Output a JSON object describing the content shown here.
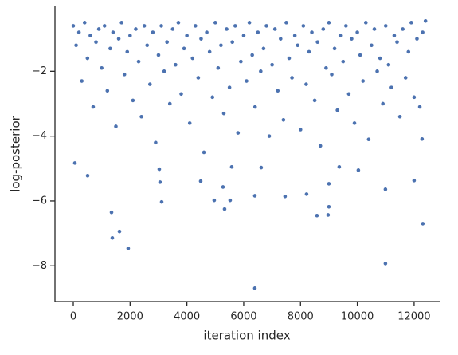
{
  "chart_data": {
    "type": "scatter",
    "xlabel": "iteration index",
    "ylabel": "log-posterior",
    "color": "#4c72b0",
    "x": [
      0,
      100,
      200,
      300,
      400,
      500,
      600,
      700,
      800,
      900,
      1000,
      1100,
      1200,
      1300,
      1400,
      1500,
      1600,
      1700,
      1800,
      1900,
      2000,
      2100,
      2200,
      2300,
      2400,
      2500,
      2600,
      2700,
      2800,
      2900,
      3000,
      3100,
      3200,
      3300,
      3400,
      3500,
      3600,
      3700,
      3800,
      3900,
      4000,
      4100,
      4200,
      4300,
      4400,
      4500,
      4600,
      4700,
      4800,
      4900,
      5000,
      5100,
      5200,
      5300,
      5400,
      5500,
      5600,
      5700,
      5800,
      5900,
      6000,
      6100,
      6200,
      6300,
      6400,
      6500,
      6600,
      6700,
      6800,
      6900,
      7000,
      7100,
      7200,
      7300,
      7400,
      7500,
      7600,
      7700,
      7800,
      7900,
      8000,
      8100,
      8200,
      8300,
      8400,
      8500,
      8600,
      8700,
      8800,
      8900,
      9000,
      9100,
      9200,
      9300,
      9400,
      9500,
      9600,
      9700,
      9800,
      9900,
      10000,
      10100,
      10200,
      10300,
      10400,
      10500,
      10600,
      10700,
      10800,
      10900,
      11000,
      11100,
      11200,
      11300,
      11400,
      11500,
      11600,
      11700,
      11800,
      11900,
      12000,
      12100,
      12200,
      12300,
      12400,
      56,
      505,
      1346,
      1374,
      1626,
      1934,
      3028,
      3056,
      3112,
      4486,
      4962,
      5271,
      5327,
      5523,
      5579,
      6392,
      6392,
      6616,
      7457,
      8214,
      8579,
      8971,
      9000,
      9000,
      9364,
      10037,
      10990,
      10990,
      12000,
      12280,
      12307
    ],
    "y": [
      -0.6,
      -1.2,
      -0.8,
      -2.3,
      -0.5,
      -1.6,
      -0.9,
      -3.1,
      -1.1,
      -0.7,
      -1.9,
      -0.6,
      -2.6,
      -1.3,
      -0.8,
      -3.7,
      -1.0,
      -0.5,
      -2.1,
      -1.4,
      -0.9,
      -2.9,
      -0.7,
      -1.7,
      -3.4,
      -0.6,
      -1.2,
      -2.4,
      -0.8,
      -4.2,
      -1.5,
      -0.6,
      -2.0,
      -1.1,
      -3.0,
      -0.7,
      -1.8,
      -0.5,
      -2.7,
      -1.3,
      -0.9,
      -3.6,
      -1.6,
      -0.6,
      -2.2,
      -1.0,
      -4.5,
      -0.8,
      -1.4,
      -2.8,
      -0.5,
      -1.9,
      -1.2,
      -3.3,
      -0.7,
      -2.5,
      -1.1,
      -0.6,
      -3.9,
      -1.7,
      -0.9,
      -2.3,
      -0.5,
      -1.5,
      -3.1,
      -0.8,
      -2.0,
      -1.3,
      -0.6,
      -4.0,
      -1.8,
      -0.7,
      -2.6,
      -1.0,
      -3.5,
      -0.5,
      -1.6,
      -2.2,
      -0.9,
      -1.2,
      -3.8,
      -0.6,
      -2.4,
      -1.4,
      -0.8,
      -2.9,
      -1.1,
      -4.3,
      -0.7,
      -1.9,
      -0.5,
      -2.1,
      -1.3,
      -3.2,
      -0.9,
      -1.7,
      -0.6,
      -2.7,
      -1.0,
      -3.6,
      -0.8,
      -1.5,
      -2.3,
      -0.5,
      -4.1,
      -1.2,
      -0.7,
      -2.0,
      -1.6,
      -3.0,
      -0.6,
      -1.8,
      -2.5,
      -0.9,
      -1.1,
      -3.4,
      -0.7,
      -2.2,
      -1.4,
      -0.5,
      -2.8,
      -1.0,
      -3.1,
      -0.8,
      -0.45,
      -4.83,
      -5.22,
      -6.35,
      -7.14,
      -6.94,
      -7.46,
      -5.02,
      -5.42,
      -6.03,
      -5.39,
      -5.98,
      -5.57,
      -6.25,
      -5.98,
      -4.95,
      -8.69,
      -5.84,
      -4.97,
      -5.86,
      -5.79,
      -6.45,
      -6.43,
      -6.18,
      -5.47,
      -4.95,
      -5.05,
      -7.93,
      -5.64,
      -5.37,
      -4.09,
      -6.7
    ],
    "xlim": [
      -645,
      12900
    ],
    "ylim": [
      -9.1,
      0
    ],
    "xticks": [
      0,
      2000,
      4000,
      6000,
      8000,
      10000,
      12000
    ],
    "yticks": [
      {
        "value": -8,
        "label": "−8"
      },
      {
        "value": -6,
        "label": "−6"
      },
      {
        "value": -4,
        "label": "−4"
      },
      {
        "value": -2,
        "label": "−2"
      }
    ]
  }
}
